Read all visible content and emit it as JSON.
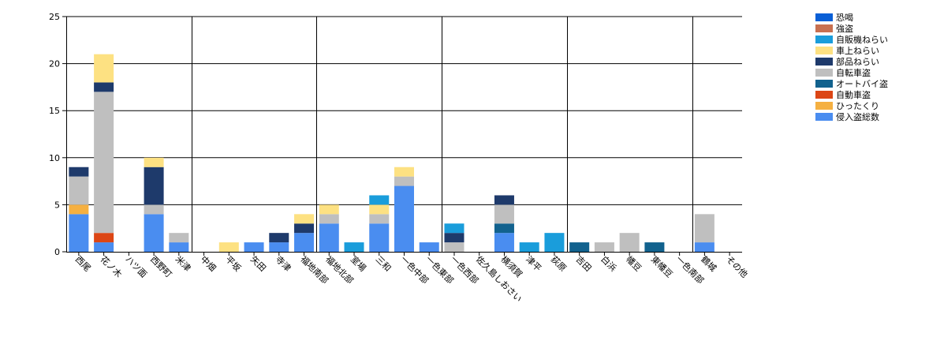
{
  "chart_data": {
    "type": "bar",
    "stacked": true,
    "title": "",
    "xlabel": "",
    "ylabel": "",
    "ylim": [
      0,
      25
    ],
    "yticks": [
      0,
      5,
      10,
      15,
      20,
      25
    ],
    "grid": true,
    "legend_position": "top-right",
    "categories": [
      "西尾",
      "花ノ木",
      "ハツ面",
      "西野町",
      "米津",
      "中畑",
      "平坂",
      "矢田",
      "寺津",
      "福地南部",
      "福地北部",
      "室場",
      "三和",
      "一色中部",
      "一色東部",
      "一色西部",
      "佐久島しおさい",
      "横須賀",
      "津平",
      "荻原",
      "吉田",
      "白浜",
      "幡豆",
      "東幡豆",
      "一色南部",
      "鶴城",
      "その他"
    ],
    "series": [
      {
        "name": "侵入盗総数",
        "color": "#4a8df0",
        "values": [
          4,
          1,
          0,
          4,
          1,
          0,
          0,
          1,
          1,
          2,
          3,
          0,
          3,
          7,
          1,
          0,
          0,
          2,
          0,
          0,
          0,
          0,
          0,
          0,
          0,
          1,
          0
        ]
      },
      {
        "name": "ひったくり",
        "color": "#f5b041",
        "values": [
          1,
          0,
          0,
          0,
          0,
          0,
          0,
          0,
          0,
          0,
          0,
          0,
          0,
          0,
          0,
          0,
          0,
          0,
          0,
          0,
          0,
          0,
          0,
          0,
          0,
          0,
          0
        ]
      },
      {
        "name": "自動車盗",
        "color": "#dc4615",
        "values": [
          0,
          1,
          0,
          0,
          0,
          0,
          0,
          0,
          0,
          0,
          0,
          0,
          0,
          0,
          0,
          0,
          0,
          0,
          0,
          0,
          0,
          0,
          0,
          0,
          0,
          0,
          0
        ]
      },
      {
        "name": "オートバイ盗",
        "color": "#12628e",
        "values": [
          0,
          0,
          0,
          0,
          0,
          0,
          0,
          0,
          0,
          0,
          0,
          0,
          0,
          0,
          0,
          0,
          0,
          1,
          0,
          0,
          1,
          0,
          0,
          1,
          0,
          0,
          0
        ]
      },
      {
        "name": "自転車盗",
        "color": "#bfbfbf",
        "values": [
          3,
          15,
          0,
          1,
          1,
          0,
          0,
          0,
          0,
          0,
          1,
          0,
          1,
          1,
          0,
          1,
          0,
          2,
          0,
          0,
          0,
          1,
          2,
          0,
          0,
          3,
          0
        ]
      },
      {
        "name": "部品ねらい",
        "color": "#1e3a6b",
        "values": [
          1,
          1,
          0,
          4,
          0,
          0,
          0,
          0,
          1,
          1,
          0,
          0,
          0,
          0,
          0,
          1,
          0,
          1,
          0,
          0,
          0,
          0,
          0,
          0,
          0,
          0,
          0
        ]
      },
      {
        "name": "車上ねらい",
        "color": "#fde182",
        "values": [
          0,
          3,
          0,
          1,
          0,
          0,
          1,
          0,
          0,
          1,
          1,
          0,
          1,
          1,
          0,
          0,
          0,
          0,
          0,
          0,
          0,
          0,
          0,
          0,
          0,
          0,
          0
        ]
      },
      {
        "name": "自販機ねらい",
        "color": "#1a9ddb",
        "values": [
          0,
          0,
          0,
          0,
          0,
          0,
          0,
          0,
          0,
          0,
          0,
          1,
          1,
          0,
          0,
          1,
          0,
          0,
          1,
          2,
          0,
          0,
          0,
          0,
          0,
          0,
          0
        ]
      },
      {
        "name": "強盗",
        "color": "#c87050",
        "values": [
          0,
          0,
          0,
          0,
          0,
          0,
          0,
          0,
          0,
          0,
          0,
          0,
          0,
          0,
          0,
          0,
          0,
          0,
          0,
          0,
          0,
          0,
          0,
          0,
          0,
          0,
          0
        ]
      },
      {
        "name": "恐喝",
        "color": "#0a5fd6",
        "values": [
          0,
          0,
          0,
          0,
          0,
          0,
          0,
          0,
          0,
          0,
          0,
          0,
          0,
          0,
          0,
          0,
          0,
          0,
          0,
          0,
          0,
          0,
          0,
          0,
          0,
          0,
          0
        ]
      }
    ]
  }
}
